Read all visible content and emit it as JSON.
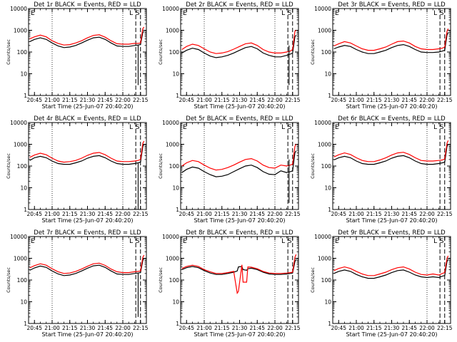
{
  "figure": {
    "background": "#ffffff",
    "events_color": "#000000",
    "lld_color": "#ff0000",
    "ylabel": "Counts/sec",
    "xlabel": "Start Time (25-Jun-07 20:40:20)",
    "yticks": [
      1,
      10,
      100,
      1000,
      10000
    ],
    "ytick_labels": [
      "1",
      "10",
      "100",
      "1000",
      "10000"
    ],
    "xticks": [
      "20:45",
      "21:00",
      "21:15",
      "21:30",
      "21:45",
      "22:00",
      "22:15"
    ],
    "x_range": [
      "20:40",
      "22:20"
    ],
    "y_range": [
      1,
      10000
    ],
    "y_scale": "log",
    "marker_labels": [
      "E",
      "L",
      "S"
    ]
  },
  "chart_data": [
    {
      "type": "line",
      "title": "Det 1r BLACK = Events, RED = LLD",
      "xlabel": "Start Time (25-Jun-07 20:40:20)",
      "ylabel": "Counts/sec",
      "x": [
        "20:41",
        "20:45",
        "20:50",
        "20:55",
        "21:00",
        "21:05",
        "21:10",
        "21:15",
        "21:20",
        "21:25",
        "21:30",
        "21:35",
        "21:40",
        "21:45",
        "21:50",
        "21:55",
        "22:00",
        "22:05",
        "22:10",
        "22:13",
        "22:15",
        "22:17",
        "22:18"
      ],
      "series": [
        {
          "name": "Events",
          "color": "#000000",
          "values": [
            300,
            380,
            450,
            380,
            260,
            190,
            160,
            170,
            200,
            260,
            350,
            450,
            480,
            380,
            260,
            190,
            180,
            180,
            200,
            210,
            220,
            800,
            900
          ]
        },
        {
          "name": "LLD",
          "color": "#ff0000",
          "values": [
            400,
            500,
            600,
            500,
            330,
            250,
            210,
            220,
            260,
            330,
            450,
            580,
            620,
            480,
            330,
            240,
            230,
            230,
            250,
            250,
            260,
            1200,
            1400
          ]
        }
      ],
      "vlines_dotted": [
        "21:00",
        "22:00"
      ],
      "vlines_dashed": [
        "22:11",
        "22:15"
      ],
      "dips": [
        {
          "x": "22:13",
          "events": 3
        }
      ],
      "ylim": [
        1,
        10000
      ],
      "yscale": "log",
      "grid": false
    },
    {
      "type": "line",
      "title": "Det 2r BLACK = Events, RED = LLD",
      "xlabel": "Start Time (25-Jun-07 20:40:20)",
      "ylabel": "Counts/sec",
      "x": [
        "20:41",
        "20:45",
        "20:50",
        "20:55",
        "21:00",
        "21:05",
        "21:10",
        "21:15",
        "21:20",
        "21:25",
        "21:30",
        "21:35",
        "21:40",
        "21:45",
        "21:50",
        "21:55",
        "22:00",
        "22:05",
        "22:10",
        "22:13",
        "22:15",
        "22:17",
        "22:18"
      ],
      "series": [
        {
          "name": "Events",
          "color": "#000000",
          "values": [
            90,
            120,
            150,
            130,
            90,
            65,
            55,
            60,
            70,
            90,
            120,
            160,
            180,
            140,
            90,
            70,
            60,
            60,
            70,
            80,
            90,
            500,
            600
          ]
        },
        {
          "name": "LLD",
          "color": "#ff0000",
          "values": [
            130,
            180,
            230,
            200,
            140,
            100,
            85,
            90,
            105,
            135,
            180,
            240,
            260,
            200,
            130,
            100,
            90,
            90,
            100,
            110,
            130,
            900,
            1000
          ]
        }
      ],
      "vlines_dotted": [
        "21:00",
        "22:00"
      ],
      "vlines_dashed": [
        "22:11",
        "22:15"
      ],
      "dips": [
        {
          "x": "22:12",
          "events": 3
        }
      ],
      "ylim": [
        1,
        10000
      ],
      "yscale": "log",
      "grid": false
    },
    {
      "type": "line",
      "title": "Det 3r BLACK = Events, RED = LLD",
      "xlabel": "Start Time (25-Jun-07 20:40:20)",
      "ylabel": "Counts/sec",
      "x": [
        "20:41",
        "20:45",
        "20:50",
        "20:55",
        "21:00",
        "21:05",
        "21:10",
        "21:15",
        "21:20",
        "21:25",
        "21:30",
        "21:35",
        "21:40",
        "21:45",
        "21:50",
        "21:55",
        "22:00",
        "22:05",
        "22:10",
        "22:13",
        "22:15",
        "22:17",
        "22:18"
      ],
      "series": [
        {
          "name": "Events",
          "color": "#000000",
          "values": [
            140,
            170,
            200,
            180,
            130,
            100,
            85,
            85,
            100,
            120,
            160,
            200,
            220,
            180,
            130,
            100,
            95,
            95,
            100,
            110,
            120,
            600,
            800
          ]
        },
        {
          "name": "LLD",
          "color": "#ff0000",
          "values": [
            190,
            240,
            300,
            260,
            190,
            140,
            120,
            120,
            140,
            170,
            230,
            300,
            320,
            260,
            180,
            140,
            130,
            130,
            140,
            150,
            170,
            900,
            1200
          ]
        }
      ],
      "vlines_dotted": [
        "22:00"
      ],
      "vlines_dashed": [
        "22:11",
        "22:15"
      ],
      "dips": [],
      "ylim": [
        1,
        10000
      ],
      "yscale": "log",
      "grid": false
    },
    {
      "type": "line",
      "title": "Det 4r BLACK = Events, RED = LLD",
      "xlabel": "Start Time (25-Jun-07 20:40:20)",
      "ylabel": "Counts/sec",
      "x": [
        "20:41",
        "20:45",
        "20:50",
        "20:55",
        "21:00",
        "21:05",
        "21:10",
        "21:15",
        "21:20",
        "21:25",
        "21:30",
        "21:35",
        "21:40",
        "21:45",
        "21:50",
        "21:55",
        "22:00",
        "22:05",
        "22:10",
        "22:13",
        "22:15",
        "22:17",
        "22:18"
      ],
      "series": [
        {
          "name": "Events",
          "color": "#000000",
          "values": [
            180,
            240,
            280,
            240,
            170,
            130,
            120,
            120,
            140,
            170,
            230,
            280,
            300,
            240,
            170,
            130,
            120,
            120,
            130,
            140,
            150,
            800,
            1000
          ]
        },
        {
          "name": "LLD",
          "color": "#ff0000",
          "values": [
            250,
            320,
            390,
            330,
            230,
            170,
            150,
            160,
            180,
            230,
            310,
            390,
            420,
            330,
            230,
            170,
            160,
            160,
            170,
            180,
            200,
            1100,
            1400
          ]
        }
      ],
      "vlines_dotted": [
        "21:00",
        "22:00"
      ],
      "vlines_dashed": [
        "22:11",
        "22:15"
      ],
      "dips": [
        {
          "x": "22:13",
          "events": 1
        }
      ],
      "ylim": [
        1,
        10000
      ],
      "yscale": "log",
      "grid": false
    },
    {
      "type": "line",
      "title": "Det 5r BLACK = Events, RED = LLD",
      "xlabel": "Start Time (25-Jun-07 20:40:20)",
      "ylabel": "Counts/sec",
      "x": [
        "20:41",
        "20:45",
        "20:50",
        "20:55",
        "21:00",
        "21:05",
        "21:10",
        "21:15",
        "21:20",
        "21:25",
        "21:30",
        "21:35",
        "21:40",
        "21:45",
        "21:50",
        "21:55",
        "22:00",
        "22:05",
        "22:10",
        "22:13",
        "22:15",
        "22:17",
        "22:18"
      ],
      "series": [
        {
          "name": "Events",
          "color": "#000000",
          "values": [
            50,
            70,
            90,
            80,
            55,
            40,
            32,
            34,
            40,
            55,
            75,
            100,
            110,
            85,
            55,
            42,
            40,
            60,
            50,
            55,
            60,
            400,
            500
          ]
        },
        {
          "name": "LLD",
          "color": "#ff0000",
          "values": [
            100,
            140,
            180,
            160,
            110,
            80,
            65,
            70,
            85,
            110,
            150,
            200,
            220,
            170,
            110,
            85,
            80,
            110,
            100,
            110,
            120,
            800,
            1000
          ]
        }
      ],
      "vlines_dotted": [
        "21:00",
        "22:00"
      ],
      "vlines_dashed": [
        "22:11",
        "22:15"
      ],
      "dips": [
        {
          "x": "22:12",
          "events": 2
        }
      ],
      "ylim": [
        1,
        10000
      ],
      "yscale": "log",
      "grid": false
    },
    {
      "type": "line",
      "title": "Det 6r BLACK = Events, RED = LLD",
      "xlabel": "Start Time (25-Jun-07 20:40:20)",
      "ylabel": "Counts/sec",
      "x": [
        "20:41",
        "20:45",
        "20:50",
        "20:55",
        "21:00",
        "21:05",
        "21:10",
        "21:15",
        "21:20",
        "21:25",
        "21:30",
        "21:35",
        "21:40",
        "21:45",
        "21:50",
        "21:55",
        "22:00",
        "22:05",
        "22:10",
        "22:13",
        "22:15",
        "22:17",
        "22:18"
      ],
      "series": [
        {
          "name": "Events",
          "color": "#000000",
          "values": [
            190,
            240,
            280,
            240,
            170,
            130,
            120,
            120,
            140,
            170,
            230,
            280,
            300,
            240,
            170,
            130,
            120,
            120,
            130,
            140,
            150,
            800,
            1000
          ]
        },
        {
          "name": "LLD",
          "color": "#ff0000",
          "values": [
            260,
            330,
            400,
            340,
            240,
            180,
            160,
            160,
            190,
            240,
            320,
            400,
            430,
            340,
            240,
            180,
            170,
            170,
            180,
            190,
            210,
            1100,
            1500
          ]
        }
      ],
      "vlines_dotted": [
        "22:00"
      ],
      "vlines_dashed": [
        "22:11",
        "22:15"
      ],
      "dips": [],
      "ylim": [
        1,
        10000
      ],
      "yscale": "log",
      "grid": false
    },
    {
      "type": "line",
      "title": "Det 7r BLACK = Events, RED = LLD",
      "xlabel": "Start Time (25-Jun-07 20:40:20)",
      "ylabel": "Counts/sec",
      "x": [
        "20:41",
        "20:45",
        "20:50",
        "20:55",
        "21:00",
        "21:05",
        "21:10",
        "21:15",
        "21:20",
        "21:25",
        "21:30",
        "21:35",
        "21:40",
        "21:45",
        "21:50",
        "21:55",
        "22:00",
        "22:05",
        "22:10",
        "22:13",
        "22:15",
        "22:17",
        "22:18"
      ],
      "series": [
        {
          "name": "Events",
          "color": "#000000",
          "values": [
            280,
            360,
            440,
            380,
            260,
            190,
            160,
            170,
            200,
            260,
            350,
            450,
            480,
            380,
            260,
            190,
            180,
            180,
            200,
            210,
            220,
            800,
            1000
          ]
        },
        {
          "name": "LLD",
          "color": "#ff0000",
          "values": [
            360,
            460,
            560,
            480,
            330,
            240,
            200,
            210,
            250,
            320,
            430,
            560,
            600,
            470,
            320,
            240,
            220,
            220,
            240,
            250,
            260,
            1100,
            1400
          ]
        }
      ],
      "vlines_dotted": [
        "21:00",
        "22:00"
      ],
      "vlines_dashed": [
        "22:11",
        "22:15"
      ],
      "dips": [
        {
          "x": "22:13",
          "events": 2
        }
      ],
      "ylim": [
        1,
        10000
      ],
      "yscale": "log",
      "grid": false
    },
    {
      "type": "line",
      "title": "Det 8r BLACK = Events, RED = LLD",
      "xlabel": "Start Time (25-Jun-07 20:40:20)",
      "ylabel": "Counts/sec",
      "x": [
        "20:41",
        "20:45",
        "20:50",
        "20:55",
        "21:00",
        "21:05",
        "21:10",
        "21:15",
        "21:20",
        "21:25",
        "21:28",
        "21:29",
        "21:32",
        "21:33",
        "21:36",
        "21:37",
        "21:40",
        "21:45",
        "21:50",
        "21:55",
        "22:00",
        "22:05",
        "22:10",
        "22:13",
        "22:15",
        "22:17",
        "22:18"
      ],
      "series": [
        {
          "name": "Events",
          "color": "#000000",
          "values": [
            300,
            370,
            420,
            370,
            270,
            210,
            180,
            180,
            200,
            230,
            260,
            400,
            420,
            300,
            280,
            330,
            350,
            300,
            230,
            190,
            180,
            180,
            190,
            200,
            210,
            700,
            900
          ]
        },
        {
          "name": "LLD",
          "color": "#ff0000",
          "values": [
            340,
            420,
            480,
            420,
            300,
            240,
            200,
            200,
            220,
            250,
            25,
            30,
            500,
            80,
            80,
            400,
            390,
            330,
            250,
            210,
            200,
            200,
            210,
            220,
            230,
            1100,
            1500
          ]
        }
      ],
      "vlines_dotted": [
        "21:00",
        "22:00"
      ],
      "vlines_dashed": [
        "22:11",
        "22:15"
      ],
      "dips": [],
      "ylim": [
        1,
        10000
      ],
      "yscale": "log",
      "grid": false
    },
    {
      "type": "line",
      "title": "Det 9r BLACK = Events, RED = LLD",
      "xlabel": "Start Time (25-Jun-07 20:40:20)",
      "ylabel": "Counts/sec",
      "x": [
        "20:41",
        "20:45",
        "20:50",
        "20:55",
        "21:00",
        "21:05",
        "21:10",
        "21:15",
        "21:20",
        "21:25",
        "21:30",
        "21:35",
        "21:40",
        "21:45",
        "21:50",
        "21:55",
        "22:00",
        "22:05",
        "22:10",
        "22:13",
        "22:15",
        "22:17",
        "22:18"
      ],
      "series": [
        {
          "name": "Events",
          "color": "#000000",
          "values": [
            200,
            250,
            290,
            250,
            180,
            140,
            120,
            120,
            140,
            170,
            220,
            270,
            290,
            230,
            170,
            140,
            130,
            140,
            130,
            150,
            160,
            700,
            900
          ]
        },
        {
          "name": "LLD",
          "color": "#ff0000",
          "values": [
            270,
            340,
            400,
            340,
            250,
            190,
            160,
            160,
            190,
            230,
            300,
            370,
            400,
            320,
            230,
            180,
            170,
            190,
            170,
            200,
            220,
            1000,
            1300
          ]
        }
      ],
      "vlines_dotted": [
        "22:00"
      ],
      "vlines_dashed": [
        "22:11",
        "22:15"
      ],
      "dips": [],
      "ylim": [
        1,
        10000
      ],
      "yscale": "log",
      "grid": false
    }
  ]
}
